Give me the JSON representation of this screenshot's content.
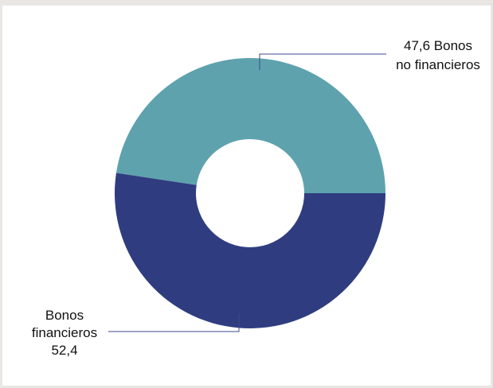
{
  "chart_data": {
    "type": "pie",
    "variant": "donut",
    "unit": "%",
    "slices": [
      {
        "name": "Bonos no financieros",
        "value": 47.6,
        "color": "#5ea2ae",
        "label_lines": [
          "47,6  Bonos",
          "no financieros"
        ]
      },
      {
        "name": "Bonos financieros",
        "value": 52.4,
        "color": "#2f3d80",
        "label_lines": [
          "Bonos",
          "financieros",
          "52,4"
        ]
      }
    ],
    "title": "",
    "legend": "none",
    "leader_line_color": "#3d4888",
    "background": "#ffffff"
  }
}
